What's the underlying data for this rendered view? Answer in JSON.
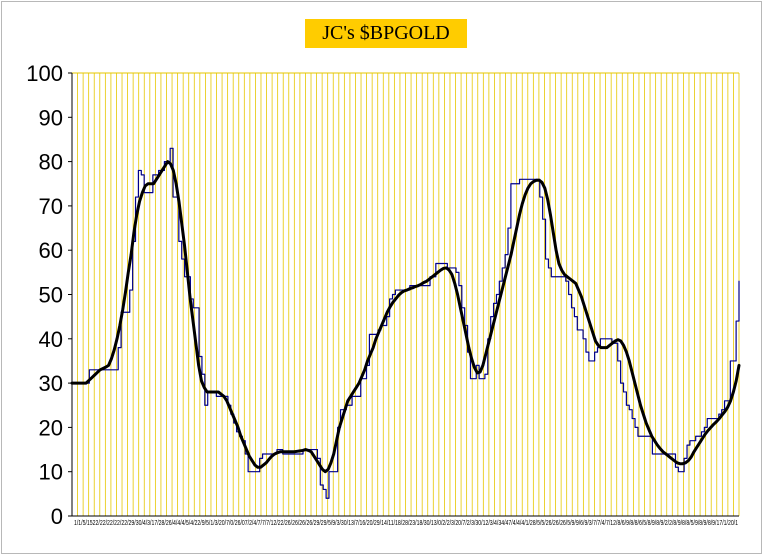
{
  "chart_data": {
    "type": "line",
    "title": "JC's $BPGOLD",
    "xlabel": "",
    "ylabel": "",
    "ylim": [
      0,
      100
    ],
    "yticks": [
      "0",
      "10",
      "20",
      "30",
      "40",
      "50",
      "60",
      "70",
      "80",
      "90",
      "100"
    ],
    "grid": "vertical",
    "legend": "none",
    "colors": {
      "raw": "#00008b",
      "smooth": "#000000",
      "grid": "#e6c700",
      "title_bg": "#ffcc00"
    },
    "x_tick_labels_text": "1/1/5/1522/22/22/22/22/29/30/4/3/17/28/26/4/4/4/5/4/22/9/5/1/3/20/7/0/26/07/2/4/7/7/7/12/22/26/26/26/26/29/29/5/9/3/30/13/7/16/20/29/14/11/18/28/23/18/30/13/0/2/2/3/20/7/2/3/30/12/3/4/34/47/4/4/4/1/28/5/5/26/26/26/5/9/9/6/9/3/7/7/4/7/12/8/6/9/8/8/6/5/8/9/8/9/2/2/8/9/8/8/5/9/8/9/8/9/17/1/20/1",
    "series": [
      {
        "kind": "raw",
        "values": [
          30,
          30,
          30,
          30,
          30,
          30,
          33,
          33,
          33,
          33,
          33,
          33,
          33,
          33,
          33,
          33,
          38,
          46,
          46,
          46,
          51,
          62,
          72,
          78,
          77,
          73,
          73,
          73,
          77,
          77,
          78,
          78,
          80,
          80,
          83,
          72,
          72,
          62,
          58,
          54,
          54,
          49,
          47,
          47,
          36,
          32,
          25,
          28,
          28,
          28,
          27,
          27,
          27,
          27,
          25,
          23,
          21,
          19,
          18,
          17,
          14,
          10,
          10,
          10,
          10,
          13,
          14,
          14,
          14,
          14,
          14,
          15,
          15,
          14,
          14,
          14,
          14,
          14,
          14,
          14,
          15,
          15,
          15,
          15,
          15,
          13,
          7,
          6,
          4,
          10,
          10,
          10,
          20,
          24,
          24,
          25,
          25,
          27,
          27,
          27,
          31,
          31,
          34,
          41,
          41,
          41,
          42,
          43,
          43,
          45,
          49,
          50,
          51,
          51,
          51,
          51,
          51,
          52,
          52,
          52,
          52,
          52,
          52,
          52,
          54,
          54,
          57,
          57,
          57,
          57,
          56,
          56,
          56,
          55,
          52,
          47,
          43,
          37,
          31,
          31,
          34,
          31,
          31,
          32,
          40,
          45,
          48,
          50,
          53,
          56,
          59,
          65,
          75,
          75,
          75,
          76,
          76,
          76,
          76,
          76,
          76,
          76,
          72,
          67,
          58,
          56,
          54,
          54,
          54,
          54,
          54,
          53,
          50,
          47,
          45,
          42,
          42,
          40,
          37,
          35,
          35,
          37,
          38,
          40,
          40,
          40,
          40,
          39,
          39,
          35,
          30,
          28,
          25,
          24,
          22,
          20,
          18,
          18,
          18,
          18,
          18,
          14,
          14,
          14,
          14,
          14,
          14,
          14,
          14,
          11,
          10,
          10,
          13,
          16,
          17,
          17,
          18,
          18,
          19,
          20,
          22,
          22,
          22,
          22,
          23,
          24,
          26,
          26,
          35,
          35,
          44,
          53
        ]
      },
      {
        "kind": "smooth",
        "values": [
          30,
          30,
          30,
          30,
          30,
          30,
          30.6,
          31.2,
          31.8,
          32.4,
          33,
          33.3,
          33.6,
          34,
          35.5,
          37.5,
          40,
          43,
          46.5,
          50.5,
          55,
          59,
          64,
          68,
          71,
          73,
          74.5,
          75,
          75,
          75,
          76,
          77,
          78,
          79,
          80,
          79.5,
          78,
          75,
          71,
          66,
          61,
          55,
          49,
          44,
          39,
          34,
          30.5,
          29,
          28,
          28,
          28,
          28,
          28,
          27.5,
          27,
          26,
          24.5,
          23,
          21.5,
          20,
          18,
          16.5,
          15,
          13.5,
          12.5,
          11.5,
          11,
          11,
          11.5,
          12,
          12.8,
          13.5,
          14,
          14.3,
          14.5,
          14.5,
          14.5,
          14.5,
          14.5,
          14.5,
          14.6,
          14.7,
          14.8,
          15,
          14.8,
          14.5,
          13.5,
          12.5,
          11.5,
          10.5,
          10,
          10.5,
          12,
          14,
          17,
          20,
          22,
          24,
          26,
          27,
          28,
          29,
          30,
          31.5,
          33,
          35,
          36.5,
          38,
          40,
          41.5,
          43,
          44.5,
          46,
          47.2,
          48.2,
          49,
          49.8,
          50.4,
          50.8,
          51,
          51.3,
          51.5,
          51.8,
          52,
          52.3,
          52.7,
          53,
          53.5,
          54,
          54.5,
          55,
          55.5,
          55.9,
          56,
          55.5,
          54.5,
          52.5,
          50,
          47,
          44,
          41,
          38,
          35.5,
          33.5,
          32.3,
          32.5,
          34,
          36.5,
          39,
          41.5,
          44,
          46.5,
          49,
          51.5,
          54,
          56.5,
          59,
          62,
          65,
          68,
          70.5,
          72.5,
          74,
          75,
          75.5,
          75.8,
          75.8,
          75.3,
          74,
          71.5,
          68,
          64,
          60,
          57,
          55.5,
          54.5,
          54,
          53.5,
          53,
          52.5,
          51,
          49.5,
          47.5,
          45.5,
          43.5,
          41.5,
          39.5,
          38.5,
          38,
          38,
          38,
          38.5,
          39,
          39.5,
          39.8,
          39.5,
          38.5,
          37,
          35,
          32.5,
          30,
          27.5,
          25,
          23,
          21,
          19.5,
          18,
          17,
          16,
          15.2,
          14.5,
          14,
          13.5,
          13,
          12.5,
          12,
          11.8,
          11.8,
          12,
          12.5,
          13.3,
          14.5,
          15.5,
          16.5,
          17.5,
          18.5,
          19.3,
          20,
          20.7,
          21.3,
          22,
          22.8,
          23.6,
          24.6,
          26,
          28,
          30.5,
          34
        ]
      }
    ]
  }
}
